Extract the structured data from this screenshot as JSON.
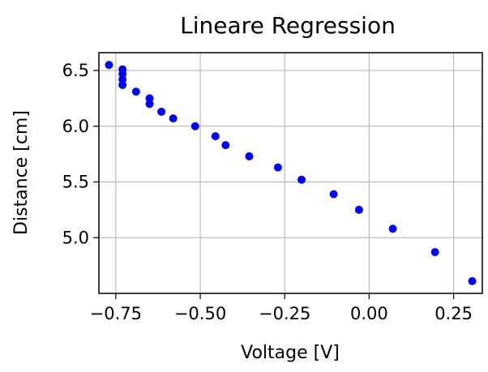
{
  "chart_data": {
    "type": "scatter",
    "title": "Lineare Regression",
    "xlabel": "Voltage [V]",
    "ylabel": "Distance [cm]",
    "xlim": [
      -0.8,
      0.335
    ],
    "ylim": [
      4.5,
      6.66
    ],
    "xticks": [
      -0.75,
      -0.5,
      -0.25,
      0.0,
      0.25
    ],
    "xtick_labels": [
      "−0.75",
      "−0.50",
      "−0.25",
      "0.00",
      "0.25"
    ],
    "yticks": [
      5.0,
      5.5,
      6.0,
      6.5
    ],
    "ytick_labels": [
      "5.0",
      "5.5",
      "6.0",
      "6.5"
    ],
    "grid": true,
    "marker_color": "#0000ff",
    "points": [
      {
        "x": -0.77,
        "y": 6.55
      },
      {
        "x": -0.73,
        "y": 6.51
      },
      {
        "x": -0.73,
        "y": 6.47
      },
      {
        "x": -0.73,
        "y": 6.42
      },
      {
        "x": -0.73,
        "y": 6.37
      },
      {
        "x": -0.69,
        "y": 6.31
      },
      {
        "x": -0.65,
        "y": 6.25
      },
      {
        "x": -0.65,
        "y": 6.2
      },
      {
        "x": -0.615,
        "y": 6.13
      },
      {
        "x": -0.58,
        "y": 6.07
      },
      {
        "x": -0.515,
        "y": 6.0
      },
      {
        "x": -0.455,
        "y": 5.91
      },
      {
        "x": -0.425,
        "y": 5.83
      },
      {
        "x": -0.355,
        "y": 5.73
      },
      {
        "x": -0.27,
        "y": 5.63
      },
      {
        "x": -0.2,
        "y": 5.52
      },
      {
        "x": -0.105,
        "y": 5.39
      },
      {
        "x": -0.03,
        "y": 5.25
      },
      {
        "x": 0.07,
        "y": 5.08
      },
      {
        "x": 0.195,
        "y": 4.87
      },
      {
        "x": 0.305,
        "y": 4.61
      }
    ]
  }
}
